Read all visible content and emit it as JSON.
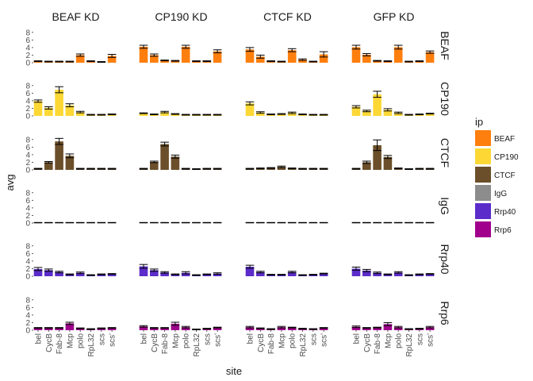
{
  "chart_data": {
    "type": "bar",
    "xlabel": "site",
    "ylabel": "avg",
    "columns": [
      "BEAF KD",
      "CP190 KD",
      "CTCF KD",
      "GFP KD"
    ],
    "rows": [
      "BEAF",
      "CP190",
      "CTCF",
      "IgG",
      "Rrp40",
      "Rrp6"
    ],
    "sites": [
      "bel",
      "CycB",
      "Fab-8",
      "Mcp",
      "polo",
      "RpL32",
      "scs",
      "scs'"
    ],
    "yticks": [
      0,
      2,
      4,
      6,
      8
    ],
    "ylim": [
      0,
      9
    ],
    "legend": {
      "title": "ip",
      "placement": "right",
      "items": [
        {
          "label": "BEAF",
          "color": "#FF7F0E"
        },
        {
          "label": "CP190",
          "color": "#FDD835"
        },
        {
          "label": "CTCF",
          "color": "#6B4F2A"
        },
        {
          "label": "IgG",
          "color": "#8C8C8C"
        },
        {
          "label": "Rrp40",
          "color": "#5B2CC9"
        },
        {
          "label": "Rrp6",
          "color": "#A0008C"
        }
      ]
    },
    "series": [
      {
        "row": "BEAF",
        "column": "BEAF KD",
        "values": [
          0.4,
          0.3,
          0.3,
          0.3,
          2.0,
          0.4,
          0.2,
          1.8
        ],
        "errors": [
          0.1,
          0.1,
          0.1,
          0.1,
          0.3,
          0.1,
          0.1,
          0.4
        ]
      },
      {
        "row": "BEAF",
        "column": "CP190 KD",
        "values": [
          4.2,
          2.0,
          0.6,
          0.5,
          4.2,
          0.4,
          0.4,
          3.0
        ],
        "errors": [
          0.4,
          0.3,
          0.1,
          0.1,
          0.4,
          0.1,
          0.1,
          0.4
        ]
      },
      {
        "row": "BEAF",
        "column": "CTCF KD",
        "values": [
          3.5,
          1.6,
          0.4,
          0.3,
          3.3,
          0.8,
          0.3,
          2.2
        ],
        "errors": [
          0.5,
          0.4,
          0.1,
          0.1,
          0.4,
          0.2,
          0.1,
          0.7
        ]
      },
      {
        "row": "BEAF",
        "column": "GFP KD",
        "values": [
          4.1,
          2.1,
          0.5,
          0.4,
          4.1,
          0.3,
          0.4,
          2.8
        ],
        "errors": [
          0.5,
          0.3,
          0.1,
          0.1,
          0.5,
          0.1,
          0.1,
          0.3
        ]
      },
      {
        "row": "CP190",
        "column": "BEAF KD",
        "values": [
          3.9,
          2.1,
          6.9,
          2.8,
          1.0,
          0.3,
          0.3,
          0.4
        ],
        "errors": [
          0.3,
          0.3,
          0.8,
          0.4,
          0.2,
          0.1,
          0.1,
          0.1
        ]
      },
      {
        "row": "CP190",
        "column": "CP190 KD",
        "values": [
          0.7,
          0.4,
          1.0,
          0.5,
          0.3,
          0.3,
          0.3,
          0.3
        ],
        "errors": [
          0.1,
          0.1,
          0.2,
          0.1,
          0.1,
          0.1,
          0.1,
          0.1
        ]
      },
      {
        "row": "CP190",
        "column": "CTCF KD",
        "values": [
          3.3,
          0.9,
          0.4,
          0.5,
          0.8,
          0.4,
          0.3,
          0.3
        ],
        "errors": [
          0.4,
          0.2,
          0.1,
          0.1,
          0.2,
          0.1,
          0.1,
          0.1
        ]
      },
      {
        "row": "CP190",
        "column": "GFP KD",
        "values": [
          2.4,
          1.3,
          5.7,
          1.6,
          0.8,
          0.3,
          0.4,
          0.6
        ],
        "errors": [
          0.3,
          0.2,
          0.8,
          0.3,
          0.2,
          0.1,
          0.1,
          0.1
        ]
      },
      {
        "row": "CTCF",
        "column": "BEAF KD",
        "values": [
          0.3,
          2.0,
          7.5,
          3.7,
          0.3,
          0.3,
          0.3,
          0.3
        ],
        "errors": [
          0.1,
          0.2,
          0.8,
          0.5,
          0.1,
          0.1,
          0.1,
          0.1
        ]
      },
      {
        "row": "CTCF",
        "column": "CP190 KD",
        "values": [
          0.3,
          2.1,
          6.8,
          3.5,
          0.3,
          0.2,
          0.3,
          0.3
        ],
        "errors": [
          0.1,
          0.2,
          0.5,
          0.4,
          0.1,
          0.1,
          0.1,
          0.1
        ]
      },
      {
        "row": "CTCF",
        "column": "CTCF KD",
        "values": [
          0.3,
          0.4,
          0.5,
          0.8,
          0.4,
          0.3,
          0.3,
          0.3
        ],
        "errors": [
          0.1,
          0.1,
          0.1,
          0.2,
          0.1,
          0.1,
          0.1,
          0.1
        ]
      },
      {
        "row": "CTCF",
        "column": "GFP KD",
        "values": [
          0.3,
          2.0,
          6.5,
          3.4,
          0.4,
          0.2,
          0.3,
          0.3
        ],
        "errors": [
          0.1,
          0.3,
          1.4,
          0.4,
          0.1,
          0.1,
          0.1,
          0.1
        ]
      },
      {
        "row": "IgG",
        "column": "BEAF KD",
        "values": [
          0.1,
          0.1,
          0.1,
          0.1,
          0.1,
          0.1,
          0.1,
          0.1
        ],
        "errors": [
          0.05,
          0.05,
          0.05,
          0.05,
          0.05,
          0.05,
          0.05,
          0.05
        ]
      },
      {
        "row": "IgG",
        "column": "CP190 KD",
        "values": [
          0.1,
          0.1,
          0.1,
          0.1,
          0.1,
          0.1,
          0.1,
          0.1
        ],
        "errors": [
          0.05,
          0.05,
          0.05,
          0.05,
          0.05,
          0.05,
          0.05,
          0.05
        ]
      },
      {
        "row": "IgG",
        "column": "CTCF KD",
        "values": [
          0.1,
          0.1,
          0.1,
          0.1,
          0.1,
          0.1,
          0.1,
          0.1
        ],
        "errors": [
          0.05,
          0.05,
          0.05,
          0.05,
          0.05,
          0.05,
          0.05,
          0.05
        ]
      },
      {
        "row": "IgG",
        "column": "GFP KD",
        "values": [
          0.1,
          0.1,
          0.1,
          0.1,
          0.1,
          0.1,
          0.1,
          0.1
        ],
        "errors": [
          0.05,
          0.05,
          0.05,
          0.05,
          0.05,
          0.05,
          0.05,
          0.05
        ]
      },
      {
        "row": "Rrp40",
        "column": "BEAF KD",
        "values": [
          1.9,
          1.6,
          1.1,
          0.5,
          0.9,
          0.3,
          0.5,
          0.6
        ],
        "errors": [
          0.4,
          0.3,
          0.2,
          0.1,
          0.2,
          0.1,
          0.1,
          0.1
        ]
      },
      {
        "row": "Rrp40",
        "column": "CP190 KD",
        "values": [
          2.6,
          1.6,
          1.0,
          0.5,
          0.9,
          0.3,
          0.5,
          0.7
        ],
        "errors": [
          0.5,
          0.3,
          0.2,
          0.1,
          0.3,
          0.1,
          0.1,
          0.2
        ]
      },
      {
        "row": "Rrp40",
        "column": "CTCF KD",
        "values": [
          2.5,
          1.1,
          0.4,
          0.4,
          1.1,
          0.3,
          0.4,
          0.7
        ],
        "errors": [
          0.4,
          0.2,
          0.1,
          0.1,
          0.2,
          0.1,
          0.1,
          0.1
        ]
      },
      {
        "row": "Rrp40",
        "column": "GFP KD",
        "values": [
          2.0,
          1.5,
          0.9,
          0.5,
          1.0,
          0.3,
          0.5,
          0.6
        ],
        "errors": [
          0.4,
          0.3,
          0.2,
          0.1,
          0.2,
          0.1,
          0.1,
          0.1
        ]
      },
      {
        "row": "Rrp6",
        "column": "BEAF KD",
        "values": [
          0.6,
          0.6,
          0.6,
          1.8,
          0.5,
          0.3,
          0.5,
          0.6
        ],
        "errors": [
          0.1,
          0.1,
          0.1,
          0.3,
          0.1,
          0.1,
          0.1,
          0.1
        ]
      },
      {
        "row": "Rrp6",
        "column": "CP190 KD",
        "values": [
          1.0,
          0.6,
          0.6,
          1.7,
          0.8,
          0.2,
          0.4,
          0.7
        ],
        "errors": [
          0.2,
          0.1,
          0.1,
          0.4,
          0.2,
          0.1,
          0.1,
          0.1
        ]
      },
      {
        "row": "Rrp6",
        "column": "CTCF KD",
        "values": [
          0.8,
          0.5,
          0.3,
          0.8,
          0.7,
          0.4,
          0.3,
          0.6
        ],
        "errors": [
          0.2,
          0.1,
          0.1,
          0.2,
          0.1,
          0.1,
          0.1,
          0.1
        ]
      },
      {
        "row": "Rrp6",
        "column": "GFP KD",
        "values": [
          0.9,
          0.6,
          0.7,
          1.6,
          0.8,
          0.3,
          0.4,
          0.8
        ],
        "errors": [
          0.2,
          0.1,
          0.1,
          0.4,
          0.2,
          0.1,
          0.1,
          0.2
        ]
      }
    ]
  }
}
